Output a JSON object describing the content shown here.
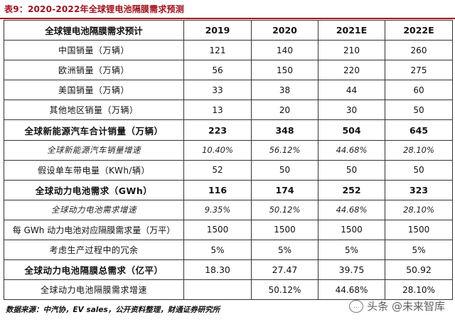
{
  "title": "表9：2020-2022年全球锂电池隔膜需求预测",
  "header": [
    "全球锂电池隔膜需求预计",
    "2019",
    "2020",
    "2021E",
    "2022E"
  ],
  "rows": [
    {
      "label": "中国销量（万辆）",
      "v": [
        "121",
        "140",
        "210",
        "260"
      ],
      "style": "normal"
    },
    {
      "label": "欧洲销量（万辆）",
      "v": [
        "56",
        "150",
        "220",
        "275"
      ],
      "style": "normal"
    },
    {
      "label": "美国销量（万辆）",
      "v": [
        "33",
        "38",
        "44",
        "60"
      ],
      "style": "normal"
    },
    {
      "label": "其他地区销量（万辆）",
      "v": [
        "13",
        "20",
        "30",
        "50"
      ],
      "style": "normal"
    },
    {
      "label": "全球新能源汽车合计销量（万辆）",
      "v": [
        "223",
        "348",
        "504",
        "645"
      ],
      "style": "bold"
    },
    {
      "label": "全球新能源汽车销量增速",
      "v": [
        "10.40%",
        "56.12%",
        "44.68%",
        "28.10%"
      ],
      "style": "italic"
    },
    {
      "label": "假设单车带电量（KWh/辆）",
      "v": [
        "52",
        "50",
        "50",
        "50"
      ],
      "style": "normal"
    },
    {
      "label": "全球动力电池需求（GWh）",
      "v": [
        "116",
        "174",
        "252",
        "323"
      ],
      "style": "bold"
    },
    {
      "label": "全球动力电池需求增速",
      "v": [
        "9.35%",
        "50.12%",
        "44.68%",
        "28.10%"
      ],
      "style": "italic"
    },
    {
      "label": "每 GWh 动力电池对应隔膜需求量（万平）",
      "v": [
        "1500",
        "1500",
        "1500",
        "1500"
      ],
      "style": "normal"
    },
    {
      "label": "考虑生产过程中的冗余",
      "v": [
        "5%",
        "5%",
        "5%",
        "5%"
      ],
      "style": "normal"
    },
    {
      "label": "全球动力电池隔膜总需求（亿平）",
      "v": [
        "18.30",
        "27.47",
        "39.75",
        "50.92"
      ],
      "style": "bold"
    },
    {
      "label": "全球动力电池隔膜需求增速",
      "v": [
        "",
        "50.12%",
        "44.68%",
        "28.10%"
      ],
      "style": "normal"
    }
  ],
  "source": "数据来源：中汽协，EV sales，公开资料整理，财通证券研究所",
  "watermark": {
    "text": "头条 @未来智库",
    "icon": "chat-bubble-icon"
  }
}
